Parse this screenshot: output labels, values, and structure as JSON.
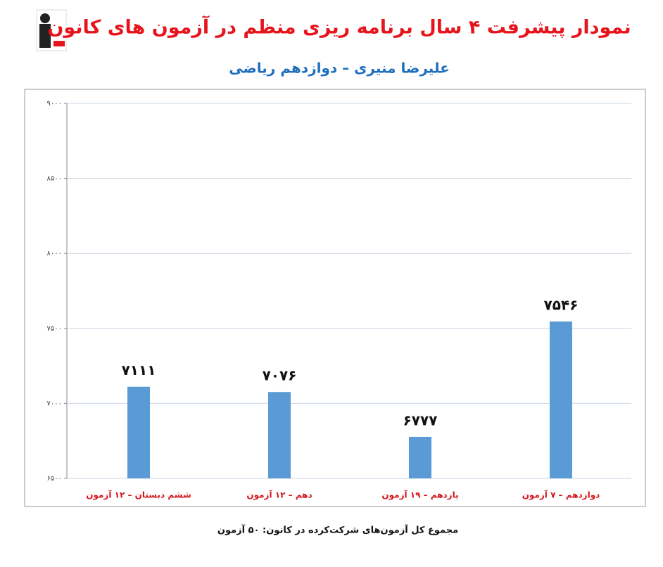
{
  "chart_data": {
    "type": "bar",
    "title": "نمودار پیشرفت ۴ سال برنامه ریزی منظم در آزمون های کانون",
    "subtitle": "علیرضا منیری – دوازدهم ریاضی",
    "categories": [
      "ششم دبستان – ۱۲ آزمون",
      "دهم – ۱۲ آزمون",
      "یازدهم – ۱۹ آزمون",
      "دوازدهم – ۷ آزمون"
    ],
    "values": [
      7111,
      7076,
      6777,
      7546
    ],
    "value_labels": [
      "۷۱۱۱",
      "۷۰۷۶",
      "۶۷۷۷",
      "۷۵۴۶"
    ],
    "color": "#5b9bd5",
    "ylim": [
      6500,
      9000
    ],
    "yticks": [
      {
        "value": 6500,
        "label": "۶۵۰۰"
      },
      {
        "value": 7000,
        "label": "۷۰۰۰"
      },
      {
        "value": 7500,
        "label": "۷۵۰۰"
      },
      {
        "value": 8000,
        "label": "۸۰۰۰"
      },
      {
        "value": 8500,
        "label": "۸۵۰۰"
      },
      {
        "value": 9000,
        "label": "۹۰۰۰"
      }
    ],
    "grid": true,
    "footnote": "مجموع کل آزمون‌های شرکت‌کرده در کانون: ۵۰ آزمون"
  }
}
